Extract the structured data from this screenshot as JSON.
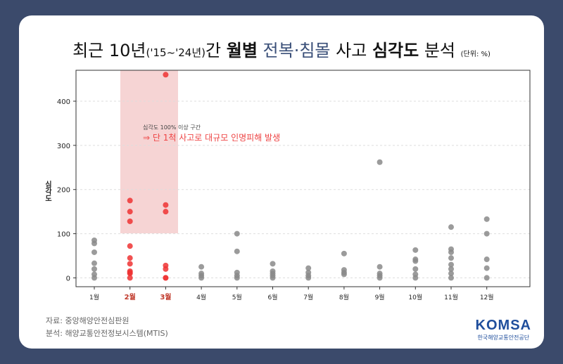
{
  "title": {
    "part1": "최근 10년",
    "part2": "('15~'24년)",
    "part3": "간",
    "part4": "월별",
    "part5": "전복·침몰",
    "part6": "사고",
    "part7": "심각도",
    "part8": "분석",
    "unit": "(단위: %)"
  },
  "annotation": {
    "line1": "심각도 100% 이상 구간",
    "line2": "⇒ 단 1척 사고로 대규모 인명피해 발생"
  },
  "source": {
    "data": "자료: 중앙해양안전심판원",
    "analysis": "분석: 해양교통안전정보시스템(MTIS)"
  },
  "logo": {
    "name": "KOMSA",
    "sub": "한국해양교통안전공단"
  },
  "colors": {
    "gray_point": "#8a8a8a",
    "red_point": "#ee3333",
    "highlight_band": "#f6d4d4",
    "highlight_label": "#c0392b",
    "accent": "#3a4f78"
  },
  "chart_data": {
    "type": "scatter",
    "ylabel": "심각도",
    "ylim": [
      -20,
      470
    ],
    "yticks": [
      0,
      100,
      200,
      300,
      400
    ],
    "grid": "horizontal",
    "categories": [
      "1월",
      "2월",
      "3월",
      "4월",
      "5월",
      "6월",
      "7월",
      "8월",
      "9월",
      "10월",
      "11월",
      "12월"
    ],
    "highlighted_categories": [
      "2월",
      "3월"
    ],
    "points": [
      {
        "month": "1월",
        "values": [
          85,
          78,
          58,
          33,
          20,
          8,
          0
        ]
      },
      {
        "month": "2월",
        "values": [
          175,
          150,
          128,
          72,
          45,
          32,
          15,
          12,
          10,
          0
        ]
      },
      {
        "month": "3월",
        "values": [
          460,
          165,
          150,
          28,
          20,
          0,
          0
        ]
      },
      {
        "month": "4월",
        "values": [
          25,
          10,
          5,
          0
        ]
      },
      {
        "month": "5월",
        "values": [
          100,
          60,
          12,
          5,
          0
        ]
      },
      {
        "month": "6월",
        "values": [
          32,
          15,
          10,
          5,
          0
        ]
      },
      {
        "month": "7월",
        "values": [
          22,
          12,
          5,
          0
        ]
      },
      {
        "month": "8월",
        "values": [
          55,
          18,
          12,
          8
        ]
      },
      {
        "month": "9월",
        "values": [
          262,
          25,
          10,
          5,
          0
        ]
      },
      {
        "month": "10월",
        "values": [
          63,
          42,
          38,
          20,
          8,
          0
        ]
      },
      {
        "month": "11월",
        "values": [
          115,
          65,
          58,
          45,
          30,
          20,
          10,
          0
        ]
      },
      {
        "month": "12월",
        "values": [
          133,
          100,
          42,
          22,
          0
        ]
      }
    ]
  }
}
